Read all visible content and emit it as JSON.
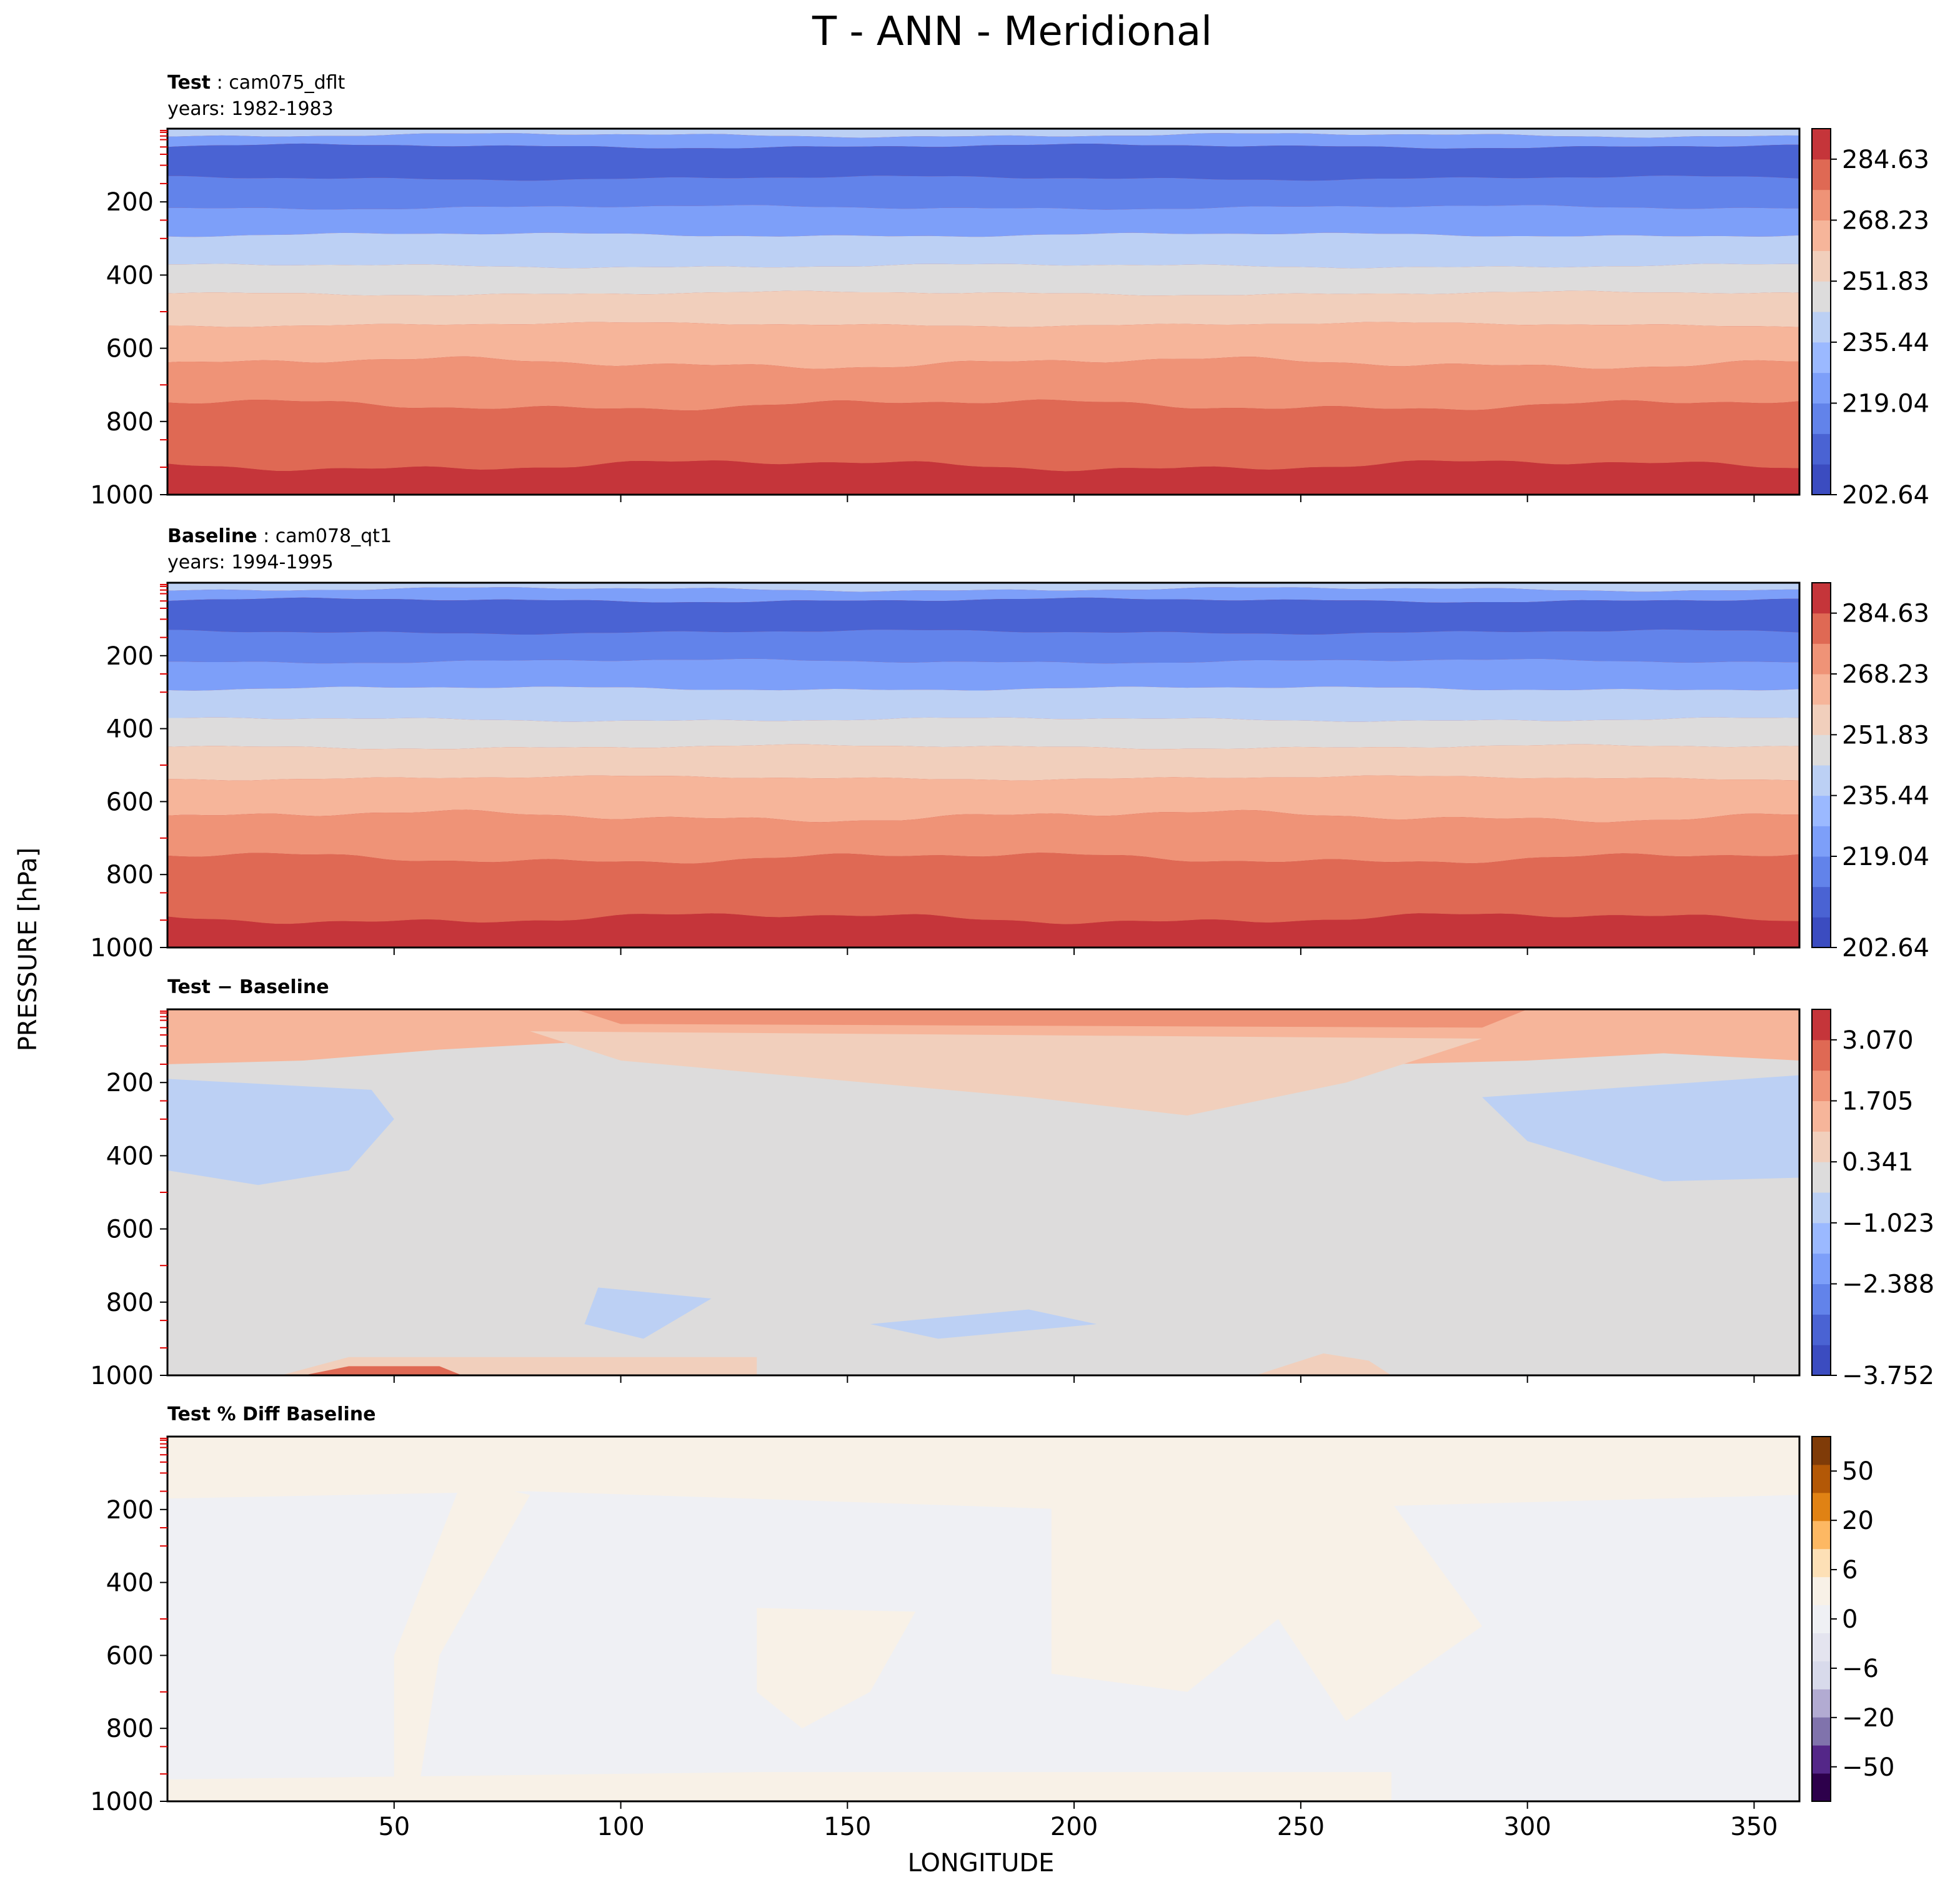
{
  "figure": {
    "title": "T - ANN - Meridional",
    "ylabel": "PRESSURE [hPa]",
    "xlabel": "LONGITUDE"
  },
  "chart_data": [
    {
      "type": "heatmap",
      "name": "test",
      "title_bold": "Test",
      "title_rest": " : cam075_dflt",
      "subtitle": "years: 1982-1983",
      "x_range": [
        0,
        360
      ],
      "y_range": [
        0,
        1000
      ],
      "y_inverted": true,
      "y_ticks": [
        "200",
        "400",
        "600",
        "800",
        "1000"
      ],
      "x_ticks": [],
      "colorbar_ticks": [
        "284.63",
        "268.23",
        "251.83",
        "235.44",
        "219.04",
        "202.64"
      ],
      "colorbar_range": [
        202.64,
        297.0
      ],
      "colorbar_colors": [
        "#3b4cc0",
        "#4a63d3",
        "#6283ea",
        "#7d9ff9",
        "#9bb9ff",
        "#bcd0f4",
        "#dddcdc",
        "#f1cfbc",
        "#f6b59a",
        "#ef9377",
        "#df6954",
        "#c5353a",
        "#b40426"
      ],
      "colormap": "coolwarm"
    },
    {
      "type": "heatmap",
      "name": "baseline",
      "title_bold": "Baseline",
      "title_rest": " : cam078_qt1",
      "subtitle": "years: 1994-1995",
      "x_range": [
        0,
        360
      ],
      "y_range": [
        0,
        1000
      ],
      "y_inverted": true,
      "y_ticks": [
        "200",
        "400",
        "600",
        "800",
        "1000"
      ],
      "x_ticks": [],
      "colorbar_ticks": [
        "284.63",
        "268.23",
        "251.83",
        "235.44",
        "219.04",
        "202.64"
      ],
      "colorbar_range": [
        202.64,
        297.0
      ],
      "colormap": "coolwarm"
    },
    {
      "type": "heatmap",
      "name": "difference",
      "title_bold": "Test − Baseline",
      "title_rest": "",
      "subtitle": "",
      "x_range": [
        0,
        360
      ],
      "y_range": [
        0,
        1000
      ],
      "y_inverted": true,
      "y_ticks": [
        "200",
        "400",
        "600",
        "800",
        "1000"
      ],
      "x_ticks": [],
      "colorbar_ticks": [
        "3.070",
        "1.705",
        "0.341",
        "−1.023",
        "−2.388",
        "−3.752"
      ],
      "colorbar_range": [
        -3.752,
        3.752
      ],
      "colormap": "coolwarm"
    },
    {
      "type": "heatmap",
      "name": "percent-diff",
      "title_bold": "Test % Diff Baseline",
      "title_rest": "",
      "subtitle": "",
      "x_range": [
        0,
        360
      ],
      "y_range": [
        0,
        1000
      ],
      "y_inverted": true,
      "y_ticks": [
        "200",
        "400",
        "600",
        "800",
        "1000"
      ],
      "x_ticks": [
        "50",
        "100",
        "150",
        "200",
        "250",
        "300",
        "350"
      ],
      "colorbar_ticks": [
        "50",
        "20",
        "6",
        "0",
        "−6",
        "−20",
        "−50"
      ],
      "colorbar_levels": [
        -100,
        -50,
        -20,
        -10,
        -6,
        -4,
        -2,
        0,
        2,
        4,
        6,
        10,
        20,
        50,
        100
      ],
      "colormap": "PuOr_r"
    }
  ],
  "x_axis_values": [
    50,
    100,
    150,
    200,
    250,
    300,
    350
  ],
  "pressure_levels": [
    200,
    400,
    600,
    800,
    1000
  ]
}
